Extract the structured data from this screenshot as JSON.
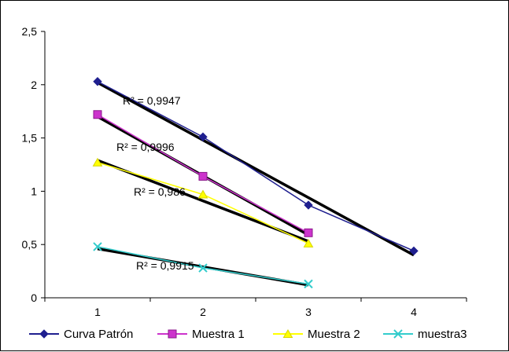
{
  "chart_data": {
    "type": "line",
    "title": "",
    "xlabel": "",
    "ylabel": "",
    "x": [
      1,
      2,
      3,
      4
    ],
    "x_tick_labels": [
      "1",
      "2",
      "3",
      "4"
    ],
    "ylim": [
      0,
      2.5
    ],
    "y_ticks": [
      0,
      0.5,
      1,
      1.5,
      2,
      2.5
    ],
    "y_tick_labels": [
      "0",
      "0,5",
      "1",
      "1,5",
      "2",
      "2,5"
    ],
    "grid": false,
    "legend_position": "bottom",
    "series": [
      {
        "name": "Curva Patrón",
        "x": [
          1,
          2,
          3,
          4
        ],
        "values": [
          2.03,
          1.51,
          0.87,
          0.44
        ],
        "color": "#1f1f8f",
        "marker": "diamond"
      },
      {
        "name": "Muestra 1",
        "x": [
          1,
          2,
          3
        ],
        "values": [
          1.72,
          1.14,
          0.61
        ],
        "color": "#cc33cc",
        "marker": "square"
      },
      {
        "name": "Muestra 2",
        "x": [
          1,
          2,
          3
        ],
        "values": [
          1.27,
          0.97,
          0.51
        ],
        "color": "#ffff00",
        "marker": "triangle"
      },
      {
        "name": "muestra3",
        "x": [
          1,
          2,
          3
        ],
        "values": [
          0.48,
          0.28,
          0.13
        ],
        "color": "#33cccc",
        "marker": "x"
      }
    ],
    "trendlines": [
      {
        "series": "Curva Patrón",
        "type": "linear",
        "x_from": 1,
        "x_to": 4,
        "y_from": 2.02,
        "y_to": 0.4,
        "color": "#000000",
        "r2_label": "R² = 0,9947"
      },
      {
        "series": "Muestra 1",
        "type": "linear",
        "x_from": 1,
        "x_to": 3,
        "y_from": 1.7,
        "y_to": 0.59,
        "color": "#000000",
        "r2_label": "R² = 0,9996"
      },
      {
        "series": "Muestra 2",
        "type": "linear",
        "x_from": 1,
        "x_to": 3,
        "y_from": 1.29,
        "y_to": 0.53,
        "color": "#000000",
        "r2_label": "R² = 0,986"
      },
      {
        "series": "muestra3",
        "type": "linear",
        "x_from": 1,
        "x_to": 3,
        "y_from": 0.46,
        "y_to": 0.12,
        "color": "#000000",
        "r2_label": "R² = 0,9915"
      }
    ]
  }
}
